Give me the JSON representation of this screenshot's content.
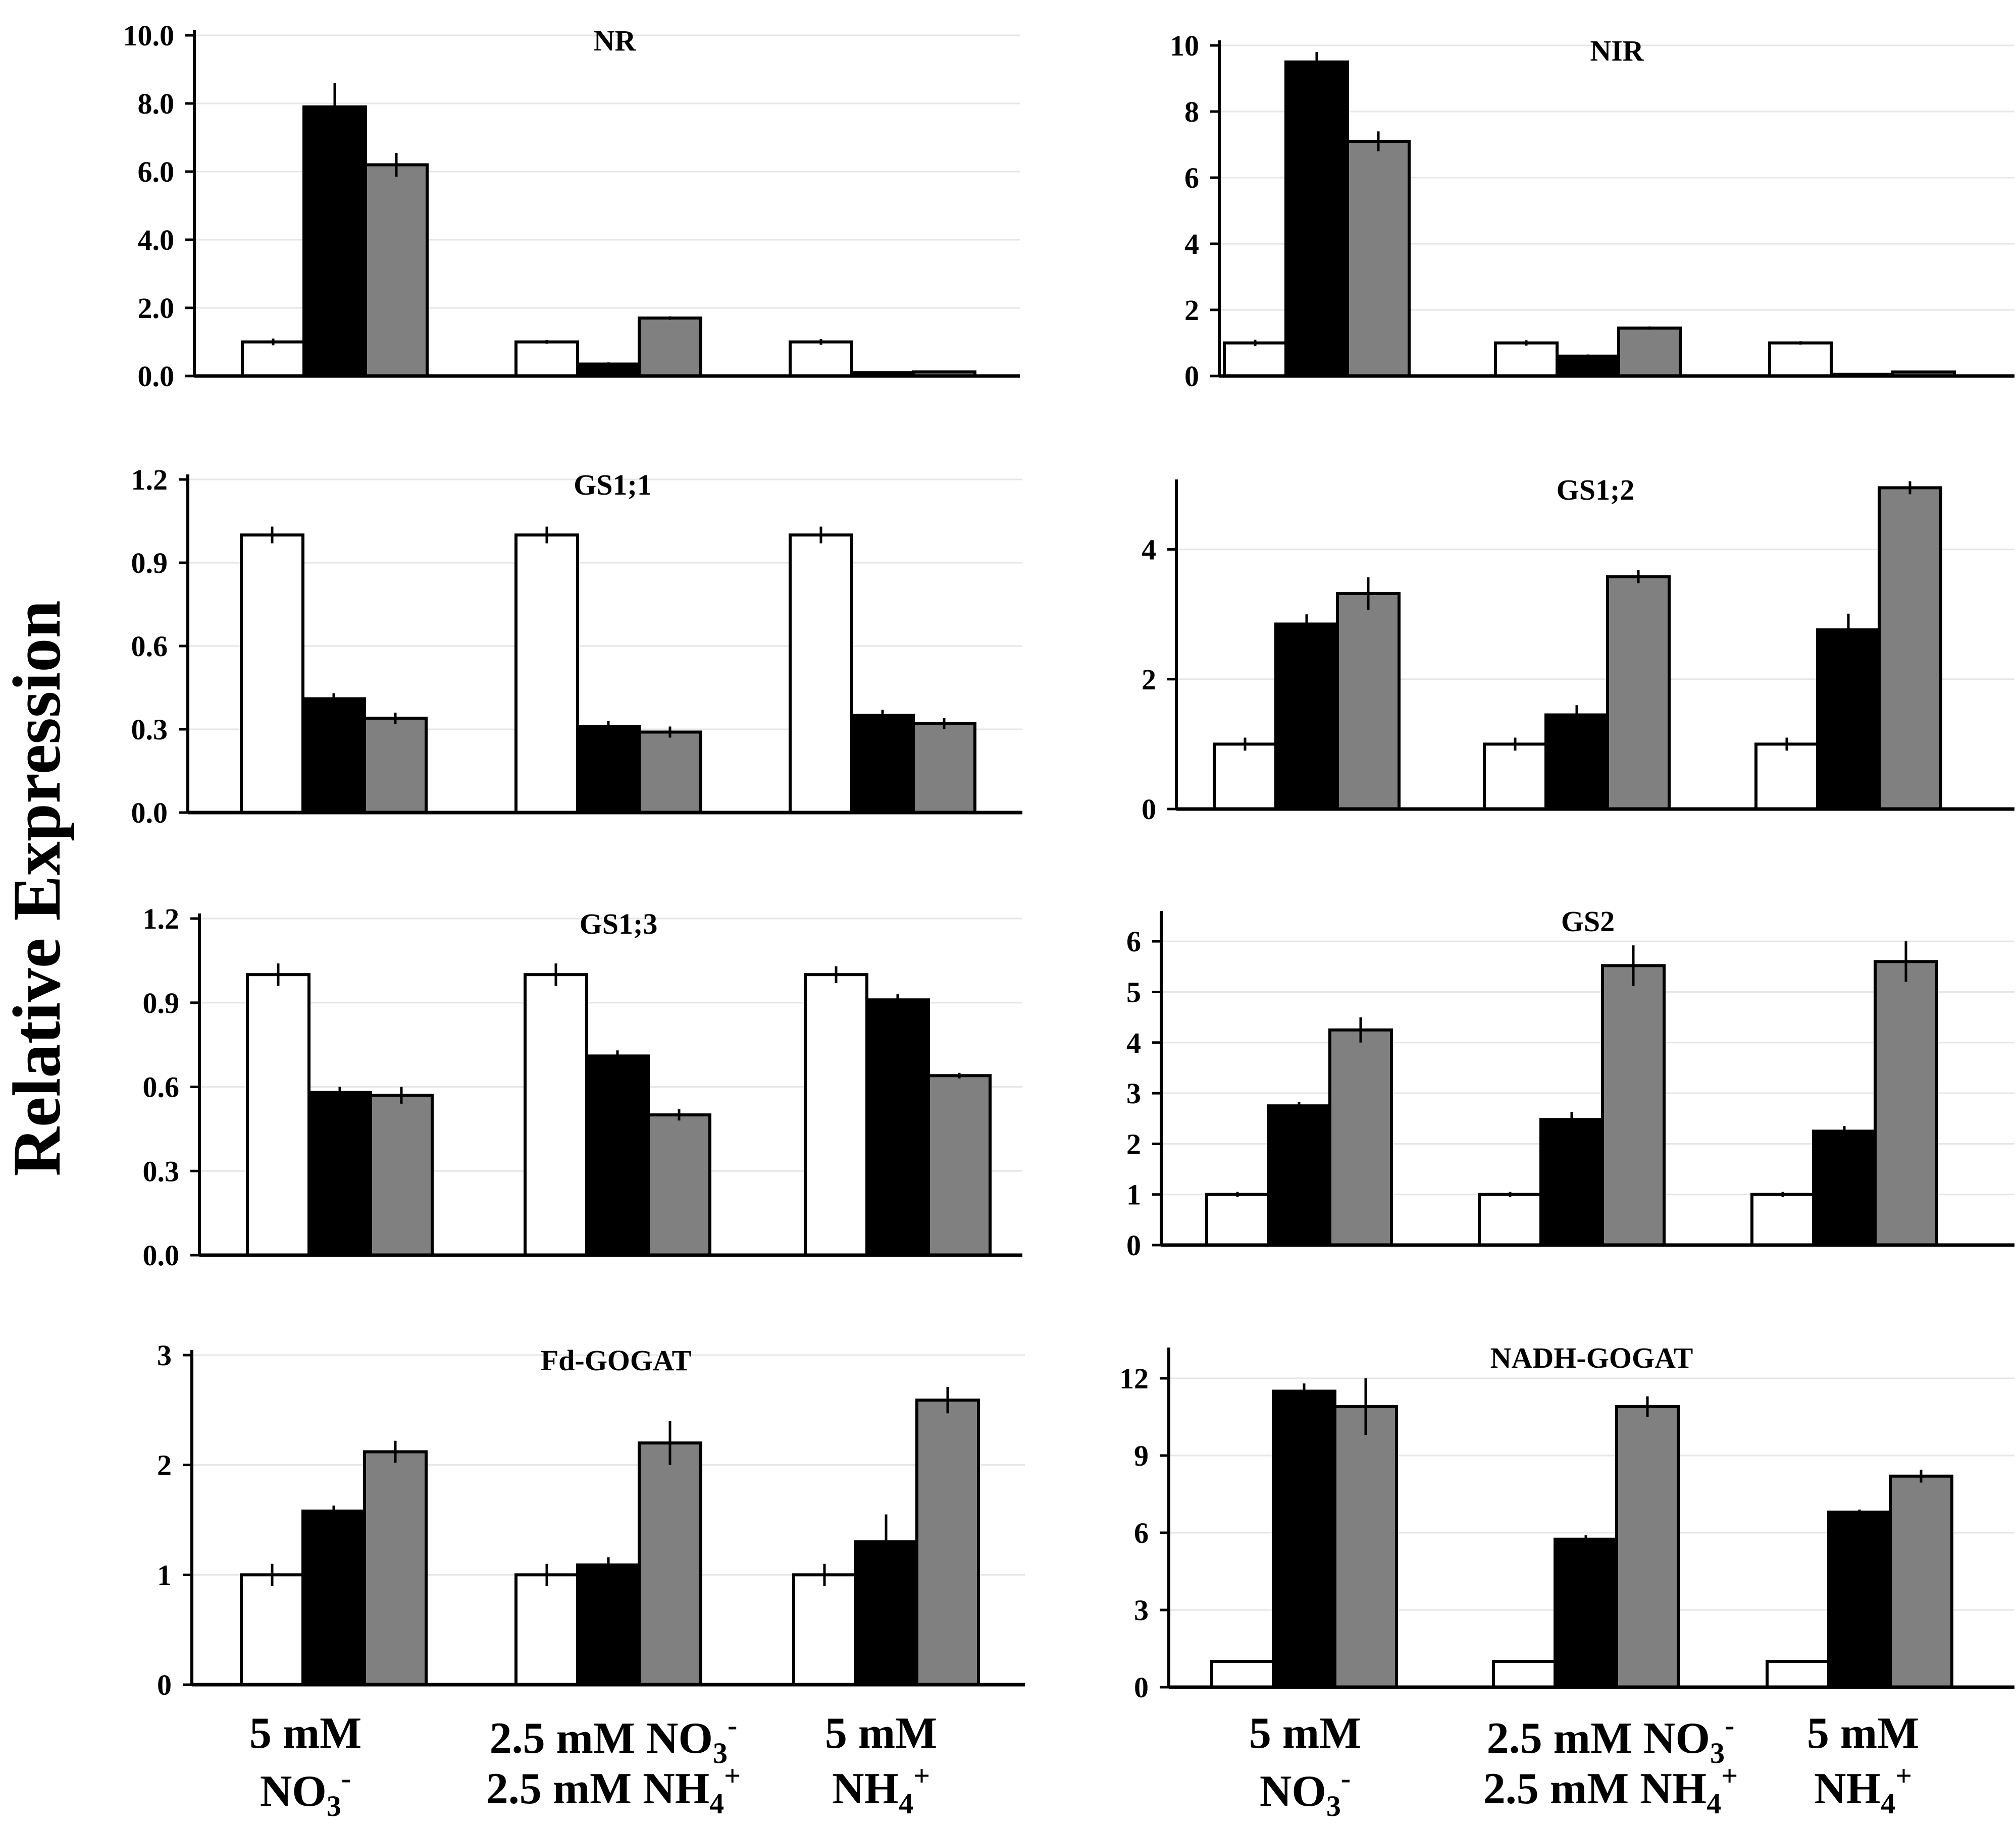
{
  "figure": {
    "ylabel": "Relative Expression",
    "series_colors": [
      "#ffffff",
      "#000000",
      "#808080"
    ],
    "categories": [
      {
        "line1": "5 mM",
        "line2_base": "NO",
        "line2_sub": "3",
        "line2_sup": "-"
      },
      {
        "line1_base": "2.5 mM NO",
        "line1_sub": "3",
        "line1_sup": "-",
        "line2_base": "2.5 mM NH",
        "line2_sub": "4",
        "line2_sup": "+"
      },
      {
        "line1": "5 mM",
        "line2_base": "NH",
        "line2_sub": "4",
        "line2_sup": "+"
      }
    ]
  },
  "chart_data": [
    {
      "type": "bar",
      "title": "NR",
      "ylim": [
        0,
        10
      ],
      "yticks": [
        "0.0",
        "2.0",
        "4.0",
        "6.0",
        "8.0",
        "10.0"
      ],
      "ytick_values": [
        0,
        2,
        4,
        6,
        8,
        10
      ],
      "values": [
        [
          1.0,
          7.9,
          6.2
        ],
        [
          1.0,
          0.35,
          1.7
        ],
        [
          1.0,
          0.1,
          0.12
        ]
      ],
      "errors": [
        [
          0.1,
          0.7,
          0.35
        ],
        [
          0.05,
          0.05,
          0.05
        ],
        [
          0.08,
          0.03,
          0.03
        ]
      ]
    },
    {
      "type": "bar",
      "title": "NIR",
      "ylim": [
        0,
        10
      ],
      "yticks": [
        "0",
        "2",
        "4",
        "6",
        "8",
        "10"
      ],
      "ytick_values": [
        0,
        2,
        4,
        6,
        8,
        10
      ],
      "values": [
        [
          1.0,
          9.5,
          7.1
        ],
        [
          1.0,
          0.6,
          1.45
        ],
        [
          1.0,
          0.05,
          0.12
        ]
      ],
      "errors": [
        [
          0.1,
          0.3,
          0.3
        ],
        [
          0.08,
          0.05,
          0.05
        ],
        [
          0.05,
          0.02,
          0.02
        ]
      ]
    },
    {
      "type": "bar",
      "title": "GS1;1",
      "ylim": [
        0,
        1.2
      ],
      "yticks": [
        "0.0",
        "0.3",
        "0.6",
        "0.9",
        "1.2"
      ],
      "ytick_values": [
        0,
        0.3,
        0.6,
        0.9,
        1.2
      ],
      "values": [
        [
          1.0,
          0.41,
          0.34
        ],
        [
          1.0,
          0.31,
          0.29
        ],
        [
          1.0,
          0.35,
          0.32
        ]
      ],
      "errors": [
        [
          0.03,
          0.02,
          0.02
        ],
        [
          0.03,
          0.02,
          0.02
        ],
        [
          0.03,
          0.02,
          0.02
        ]
      ]
    },
    {
      "type": "bar",
      "title": "GS1;2",
      "ylim": [
        0,
        5
      ],
      "yticks": [
        "0",
        "2",
        "4"
      ],
      "ytick_values": [
        0,
        2,
        4
      ],
      "values": [
        [
          1.0,
          2.85,
          3.32
        ],
        [
          1.0,
          1.45,
          3.58
        ],
        [
          1.0,
          2.76,
          4.95
        ]
      ],
      "errors": [
        [
          0.1,
          0.15,
          0.25
        ],
        [
          0.1,
          0.15,
          0.1
        ],
        [
          0.1,
          0.25,
          0.1
        ]
      ]
    },
    {
      "type": "bar",
      "title": "GS1;3",
      "ylim": [
        0,
        1.2
      ],
      "yticks": [
        "0.0",
        "0.3",
        "0.6",
        "0.9",
        "1.2"
      ],
      "ytick_values": [
        0,
        0.3,
        0.6,
        0.9,
        1.2
      ],
      "values": [
        [
          1.0,
          0.58,
          0.57
        ],
        [
          1.0,
          0.71,
          0.5
        ],
        [
          1.0,
          0.91,
          0.64
        ]
      ],
      "errors": [
        [
          0.04,
          0.02,
          0.03
        ],
        [
          0.04,
          0.02,
          0.02
        ],
        [
          0.03,
          0.02,
          0.01
        ]
      ]
    },
    {
      "type": "bar",
      "title": "GS2",
      "ylim": [
        0,
        6.5
      ],
      "yticks": [
        "0",
        "1",
        "2",
        "3",
        "4",
        "5",
        "6"
      ],
      "ytick_values": [
        0,
        1,
        2,
        3,
        4,
        5,
        6
      ],
      "values": [
        [
          1.0,
          2.75,
          4.25
        ],
        [
          1.0,
          2.48,
          5.52
        ],
        [
          1.0,
          2.25,
          5.6
        ]
      ],
      "errors": [
        [
          0.05,
          0.08,
          0.25
        ],
        [
          0.05,
          0.15,
          0.4
        ],
        [
          0.05,
          0.1,
          0.4
        ]
      ]
    },
    {
      "type": "bar",
      "title": "Fd-GOGAT",
      "ylim": [
        0,
        3
      ],
      "yticks": [
        "0",
        "1",
        "2",
        "3"
      ],
      "ytick_values": [
        0,
        1,
        2,
        3
      ],
      "values": [
        [
          1.0,
          1.58,
          2.12
        ],
        [
          1.0,
          1.09,
          2.2
        ],
        [
          1.0,
          1.3,
          2.59
        ]
      ],
      "errors": [
        [
          0.1,
          0.05,
          0.1
        ],
        [
          0.1,
          0.07,
          0.2
        ],
        [
          0.1,
          0.25,
          0.12
        ]
      ]
    },
    {
      "type": "bar",
      "title": "NADH-GOGAT",
      "ylim": [
        0,
        13
      ],
      "yticks": [
        "0",
        "3",
        "6",
        "9",
        "12"
      ],
      "ytick_values": [
        0,
        3,
        6,
        9,
        12
      ],
      "values": [
        [
          1.0,
          11.5,
          10.9
        ],
        [
          1.0,
          5.75,
          10.9
        ],
        [
          1.0,
          6.8,
          8.2
        ]
      ],
      "errors": [
        [
          0.05,
          0.3,
          1.1
        ],
        [
          0.05,
          0.15,
          0.4
        ],
        [
          0.05,
          0.1,
          0.25
        ]
      ]
    }
  ]
}
